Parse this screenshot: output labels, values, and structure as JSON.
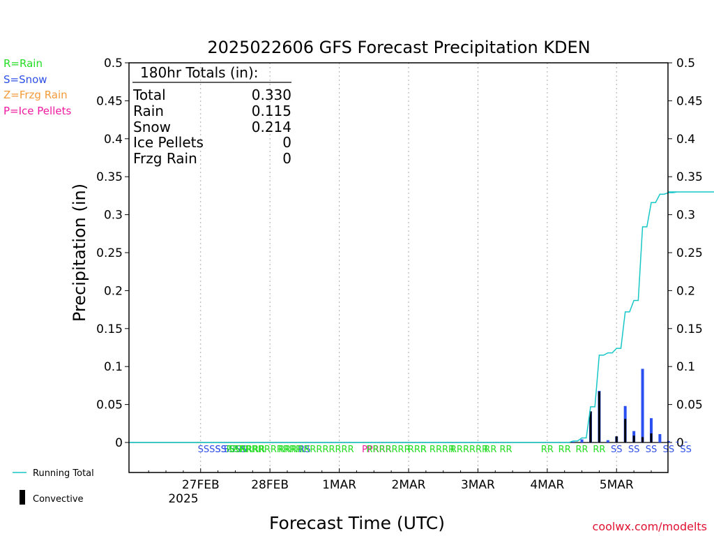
{
  "chart_data": {
    "type": "bar",
    "title": "2025022606 GFS Forecast Precipitation KDEN",
    "xlabel": "Forecast Time (UTC)",
    "ylabel": "Precipitation (in)",
    "ylim": [
      0,
      0.5
    ],
    "y_ticks": [
      "0",
      "0.05",
      "0.1",
      "0.15",
      "0.2",
      "0.25",
      "0.3",
      "0.35",
      "0.4",
      "0.45",
      "0.5"
    ],
    "x_ticks": [
      "27FEB",
      "28FEB",
      "1MAR",
      "2MAR",
      "3MAR",
      "4MAR",
      "5MAR"
    ],
    "x_year_label": "2025",
    "x_range_hours": [
      -24.8,
      161.8
    ],
    "grid": "dashed vertical at day boundaries",
    "legend_placement": "bottom-left",
    "series": [
      {
        "name": "Running Total",
        "kind": "step-line",
        "color": "#17c7c7",
        "hours": [
          129,
          132,
          135,
          138,
          141,
          144,
          147,
          150,
          153,
          156,
          159,
          162,
          165,
          168,
          171,
          174,
          177,
          180
        ],
        "values": [
          0.002,
          0.006,
          0.047,
          0.115,
          0.118,
          0.124,
          0.172,
          0.187,
          0.284,
          0.316,
          0.327,
          0.329,
          0.33,
          0.33,
          0.33,
          0.33,
          0.33,
          0.33
        ]
      },
      {
        "name": "Convective",
        "kind": "bar",
        "color": "#000000",
        "hours": [
          135,
          138,
          141,
          144,
          147,
          150,
          153,
          156
        ],
        "values": [
          0.041,
          0.067,
          0.0,
          0.008,
          0.031,
          0.009,
          0.007,
          0.012
        ]
      },
      {
        "name": "Total",
        "kind": "bar",
        "color": "#2a4ff0",
        "hours": [
          129,
          132,
          135,
          138,
          141,
          144,
          147,
          150,
          153,
          156,
          159,
          162,
          165,
          168
        ],
        "values": [
          0.001,
          0.004,
          0.041,
          0.068,
          0.003,
          0.008,
          0.048,
          0.015,
          0.097,
          0.032,
          0.011,
          0.002,
          0.001,
          0.001
        ]
      }
    ],
    "totals_box": {
      "header": "180hr Totals (in):",
      "rows": [
        {
          "label": "Total",
          "value": "0.330"
        },
        {
          "label": "Rain",
          "value": "0.115"
        },
        {
          "label": "Snow",
          "value": "0.214"
        },
        {
          "label": "Ice Pellets",
          "value": "0"
        },
        {
          "label": "Frzg Rain",
          "value": "0"
        }
      ]
    },
    "ptype_key": [
      {
        "text": "R=Rain",
        "color": "#22dd22"
      },
      {
        "text": "S=Snow",
        "color": "#2f4fe8"
      },
      {
        "text": "Z=Frzg Rain",
        "color": "#f39a3a"
      },
      {
        "text": "P=Ice Pellets",
        "color": "#f01aa0"
      }
    ],
    "ptype_markers": [
      {
        "x": 4,
        "t": "SSSSS",
        "c": "#2f4fe8"
      },
      {
        "x": 7,
        "t": "SS",
        "c": "#2f4fe8"
      },
      {
        "x": 12,
        "t": "SSSS",
        "c": "#2f4fe8"
      },
      {
        "x": 16,
        "t": "SSRRRR",
        "c": "#22dd22"
      },
      {
        "x": 22,
        "t": "RRRRRRRRRRRR",
        "c": "#22dd22"
      },
      {
        "x": 36,
        "t": "RS",
        "c": "#2f4fe8"
      },
      {
        "x": 40,
        "t": "RRRRRRRRRRRR",
        "c": "#22dd22"
      },
      {
        "x": 61,
        "t": "PPRRR",
        "c": "#f01aa0"
      },
      {
        "x": 65,
        "t": "RRRRRRR",
        "c": "#22dd22"
      },
      {
        "x": 75,
        "t": "RRR",
        "c": "#22dd22"
      },
      {
        "x": 82,
        "t": "R RRRR",
        "c": "#22dd22"
      },
      {
        "x": 93,
        "t": "RRRRRR",
        "c": "#22dd22"
      },
      {
        "x": 103,
        "t": "RR RR",
        "c": "#22dd22"
      },
      {
        "x": 120,
        "t": "RR",
        "c": "#22dd22"
      },
      {
        "x": 126,
        "t": "RR",
        "c": "#22dd22"
      },
      {
        "x": 132,
        "t": "RR",
        "c": "#22dd22"
      },
      {
        "x": 138,
        "t": "RR",
        "c": "#22dd22"
      },
      {
        "x": 144,
        "t": "SS",
        "c": "#2f4fe8"
      },
      {
        "x": 150,
        "t": "SS",
        "c": "#2f4fe8"
      },
      {
        "x": 156,
        "t": "SS",
        "c": "#2f4fe8"
      },
      {
        "x": 162,
        "t": "SS",
        "c": "#2f4fe8"
      },
      {
        "x": 168,
        "t": "SS",
        "c": "#2f4fe8"
      }
    ],
    "legend": [
      {
        "label": "Running Total",
        "color": "#17c7c7"
      },
      {
        "label": "Convective",
        "color": "#000000"
      }
    ],
    "credit": "coolwx.com/modelts",
    "credit_color": "#e01030"
  }
}
